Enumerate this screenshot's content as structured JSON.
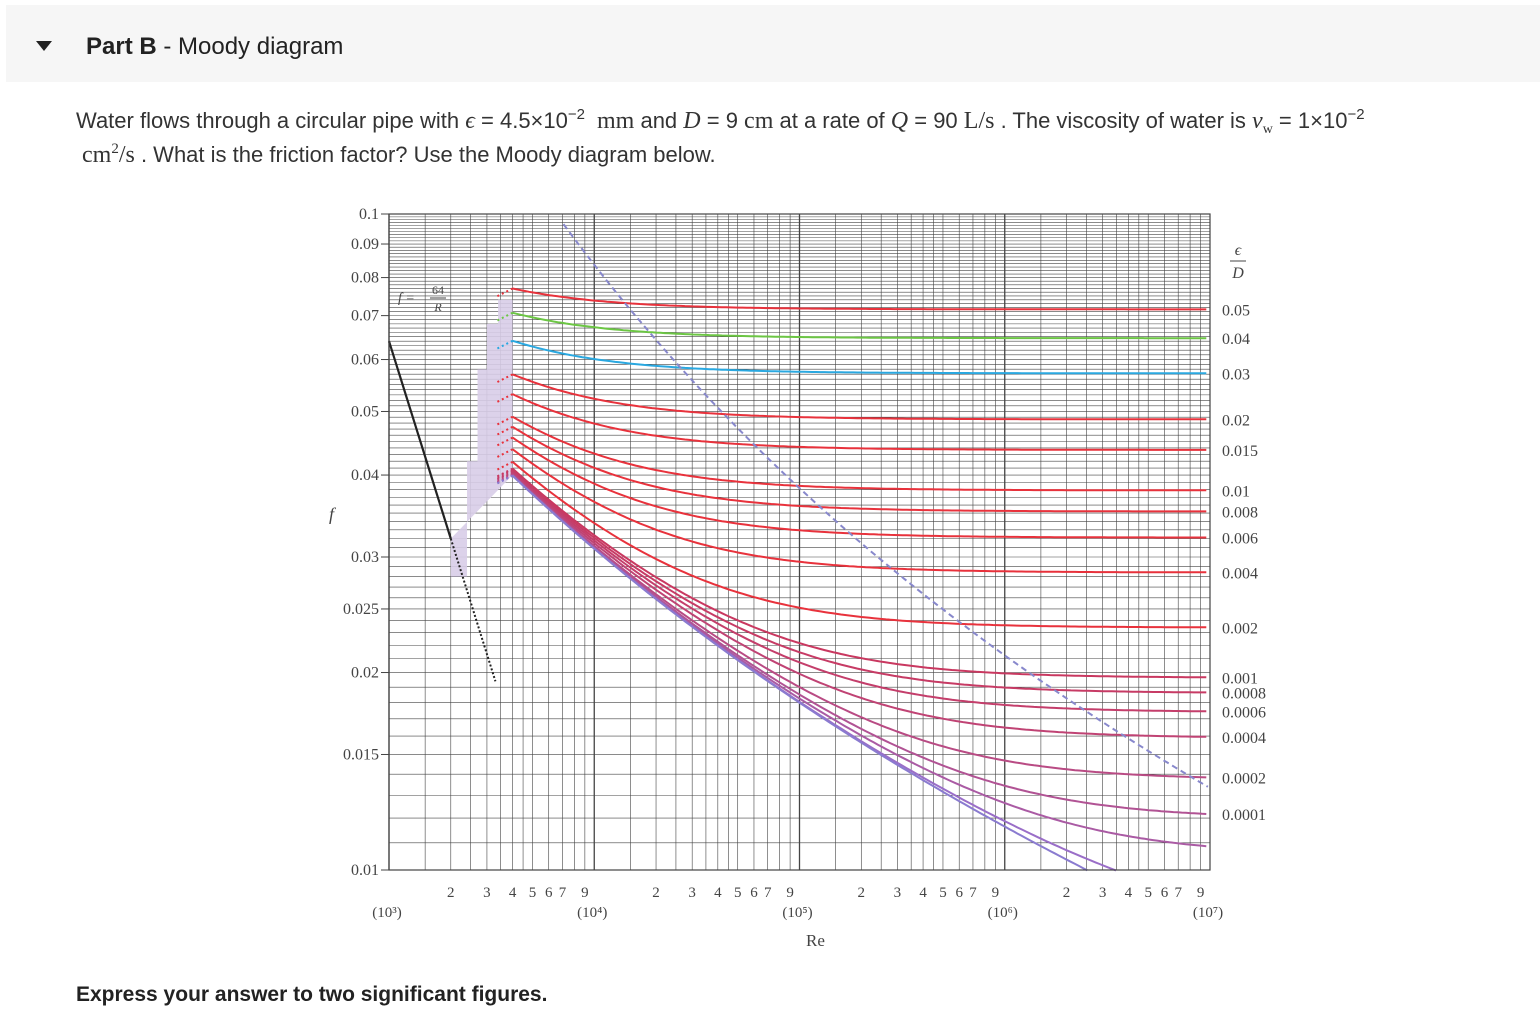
{
  "part": {
    "label": "Part B",
    "separator": " - ",
    "title": "Moody diagram"
  },
  "question": {
    "t1": "Water flows through a circular pipe with ",
    "eps_symbol": "ϵ",
    "eq1": " = 4.5×10",
    "eps_exp": "−2",
    "eps_unit": "mm",
    "t2": " and ",
    "D_symbol": "D",
    "eq2": " = 9 ",
    "D_unit": "cm",
    "t3": " at a rate of ",
    "Q_symbol": "Q",
    "eq3": " = 90 ",
    "Q_unit": "L/s",
    "t4": " . The viscosity of water is ",
    "nu_symbol": "ν",
    "nu_sub": "w",
    "eq4": " = 1×10",
    "nu_exp": "−2",
    "nu_unit_base": "cm",
    "nu_unit_exp": "2",
    "nu_unit_rest": "/s",
    "t5": " . What is the friction factor? Use the Moody diagram below."
  },
  "instruction": "Express your answer to two significant figures.",
  "chart_data": {
    "type": "line",
    "xscale": "log",
    "yscale": "log",
    "xlim": [
      1000,
      10000000
    ],
    "ylim": [
      0.01,
      0.1
    ],
    "xlabel": "Re",
    "ylabel": "f",
    "ytick_labels": [
      "0.1",
      "0.09",
      "0.08",
      "0.07",
      "0.06",
      "0.05",
      "0.04",
      "0.03",
      "0.025",
      "0.02",
      "0.015",
      "0.01"
    ],
    "ytick_values": [
      0.1,
      0.09,
      0.08,
      0.07,
      0.06,
      0.05,
      0.04,
      0.03,
      0.025,
      0.02,
      0.015,
      0.01
    ],
    "decade_labels": [
      "(10³)",
      "(10⁴)",
      "(10⁵)",
      "(10⁶)",
      "(10⁷)"
    ],
    "decade_values": [
      1000,
      10000,
      100000,
      1000000,
      10000000
    ],
    "minor_labels": [
      "2",
      "3",
      "4",
      "5",
      "6",
      "7",
      "9"
    ],
    "minor_values": [
      2,
      3,
      4,
      5,
      6,
      7,
      9
    ],
    "laminar_label": "f = 64/R",
    "roughness_header": "ϵ/D",
    "roughness_labels": [
      "0.05",
      "0.04",
      "0.03",
      "0.02",
      "0.015",
      "0.01",
      "0.008",
      "0.006",
      "0.004",
      "0.002",
      "0.001",
      "0.0008",
      "0.0006",
      "0.0004",
      "0.0002",
      "0.0001"
    ],
    "roughness_values": [
      0.05,
      0.04,
      0.03,
      0.02,
      0.015,
      0.01,
      0.008,
      0.006,
      0.004,
      0.002,
      0.001,
      0.0008,
      0.0006,
      0.0004,
      0.0002,
      0.0001,
      5e-05,
      1e-05,
      0
    ],
    "colors": {
      "red": "#e8323c",
      "green": "#6cc644",
      "blue": "#2aa8e0",
      "smooth": "#8a7bd0",
      "laminar": "#222222",
      "transition": "#d8cde8",
      "dashed": "#8888cc",
      "grid": "#444444"
    },
    "legend": "none",
    "grid": true
  }
}
